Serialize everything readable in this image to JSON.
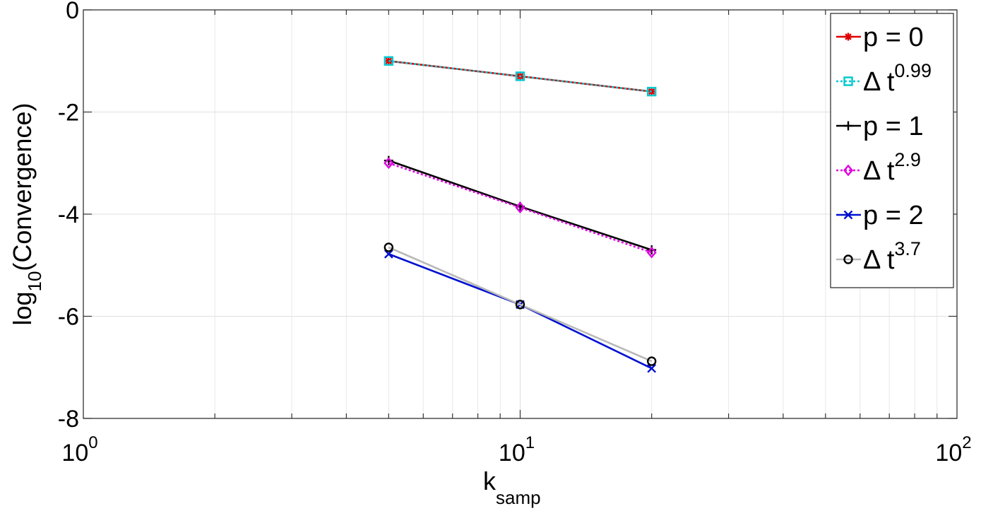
{
  "chart_data": {
    "type": "line",
    "xlabel": {
      "main": "k",
      "subscript": "samp"
    },
    "ylabel": {
      "main": "log",
      "subscript": "10",
      "suffix": "(Convergence)"
    },
    "x_scale": "log",
    "xlim": [
      1,
      100
    ],
    "ylim": [
      -8,
      0
    ],
    "grid": true,
    "x_ticks": [
      {
        "value": 1,
        "base": "10",
        "exp": "0"
      },
      {
        "value": 10,
        "base": "10",
        "exp": "1"
      },
      {
        "value": 100,
        "base": "10",
        "exp": "2"
      }
    ],
    "y_ticks": [
      {
        "value": 0,
        "label": "0"
      },
      {
        "value": -2,
        "label": "-2"
      },
      {
        "value": -4,
        "label": "-4"
      },
      {
        "value": -6,
        "label": "-6"
      },
      {
        "value": -8,
        "label": "-8"
      }
    ],
    "legend_position": "top-right",
    "series": [
      {
        "name": "p = 0",
        "legend": {
          "text": "p = 0"
        },
        "color": "#e00000",
        "marker": "asterisk",
        "dash": "solid",
        "x": [
          5,
          10,
          20
        ],
        "y": [
          -1.0,
          -1.3,
          -1.6
        ]
      },
      {
        "name": "Δ t^0.99",
        "legend": {
          "text": "Δ t",
          "sup": "0.99"
        },
        "color": "#00c8d0",
        "marker": "square",
        "dash": "dotted",
        "x": [
          5,
          10,
          20
        ],
        "y": [
          -1.0,
          -1.3,
          -1.6
        ]
      },
      {
        "name": "p = 1",
        "legend": {
          "text": "p = 1"
        },
        "color": "#000000",
        "marker": "plus",
        "dash": "solid",
        "x": [
          5,
          10,
          20
        ],
        "y": [
          -2.95,
          -3.85,
          -4.7
        ]
      },
      {
        "name": "Δ t^2.9",
        "legend": {
          "text": "Δ t",
          "sup": "2.9"
        },
        "color": "#e000e0",
        "marker": "diamond",
        "dash": "dotted",
        "x": [
          5,
          10,
          20
        ],
        "y": [
          -3.0,
          -3.87,
          -4.75
        ]
      },
      {
        "name": "p = 2",
        "legend": {
          "text": "p = 2"
        },
        "color": "#0010d0",
        "marker": "x",
        "dash": "solid",
        "x": [
          5,
          10,
          20
        ],
        "y": [
          -4.78,
          -5.77,
          -7.02
        ]
      },
      {
        "name": "Δ t^3.7",
        "legend": {
          "text": "Δ t",
          "sup": "3.7"
        },
        "color": "#b8b8b8",
        "marker_color": "#000000",
        "marker": "circle",
        "dash": "solid",
        "x": [
          5,
          10,
          20
        ],
        "y": [
          -4.65,
          -5.77,
          -6.88
        ]
      }
    ]
  }
}
